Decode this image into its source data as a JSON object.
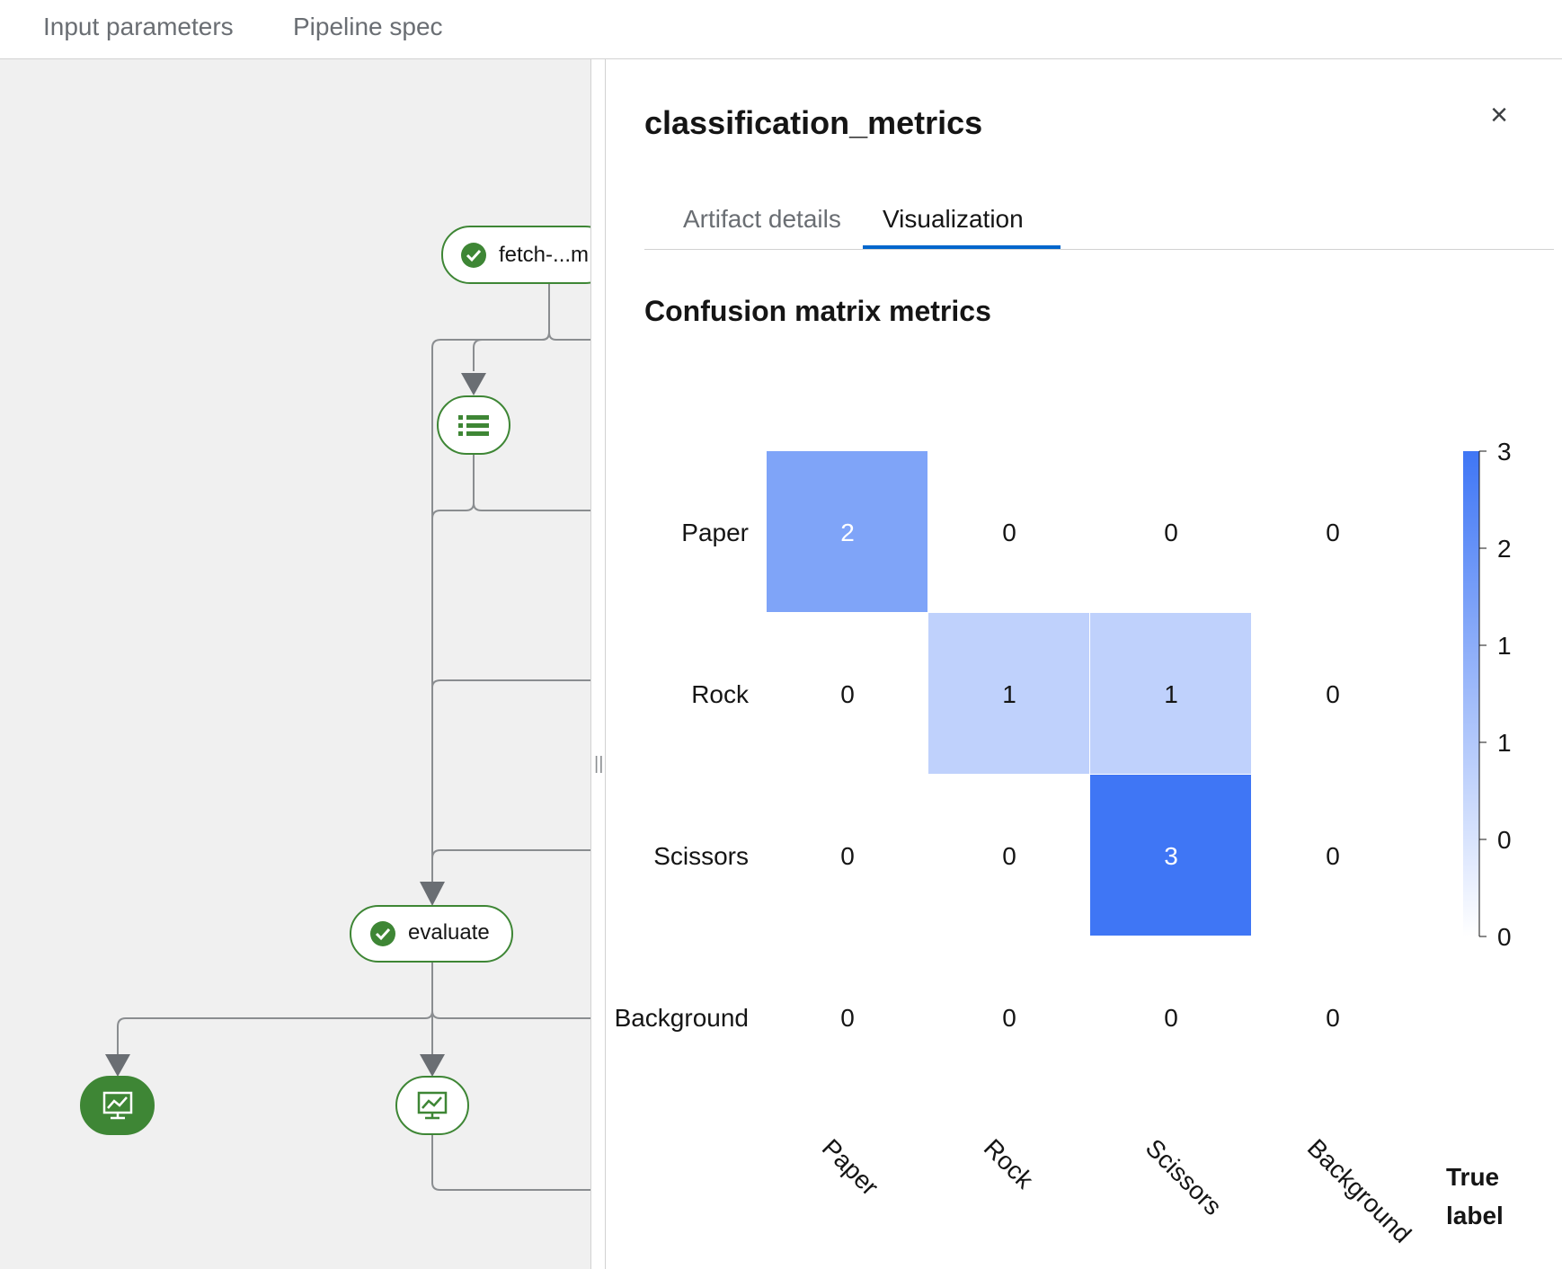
{
  "top_tabs": [
    "Input parameters",
    "Pipeline spec"
  ],
  "pipeline": {
    "nodes": {
      "fetch_label": "fetch-...m",
      "evaluate_label": "evaluate"
    }
  },
  "drawer": {
    "title": "classification_metrics",
    "close_label": "×",
    "tabs": [
      {
        "label": "Artifact details",
        "active": false
      },
      {
        "label": "Visualization",
        "active": true
      }
    ],
    "section_title": "Confusion matrix metrics"
  },
  "chart_data": {
    "type": "heatmap",
    "title": "Confusion matrix metrics",
    "row_labels": [
      "Paper",
      "Rock",
      "Scissors",
      "Background"
    ],
    "col_labels": [
      "Paper",
      "Rock",
      "Scissors",
      "Background"
    ],
    "values": [
      [
        2,
        0,
        0,
        0
      ],
      [
        0,
        1,
        1,
        0
      ],
      [
        0,
        0,
        3,
        0
      ],
      [
        0,
        0,
        0,
        0
      ]
    ],
    "xlabel": "True label",
    "colorbar": {
      "ticks": [
        "3",
        "2",
        "1",
        "1",
        "0",
        "0"
      ],
      "min": 0,
      "max": 3,
      "color": "#3f76f5"
    }
  }
}
